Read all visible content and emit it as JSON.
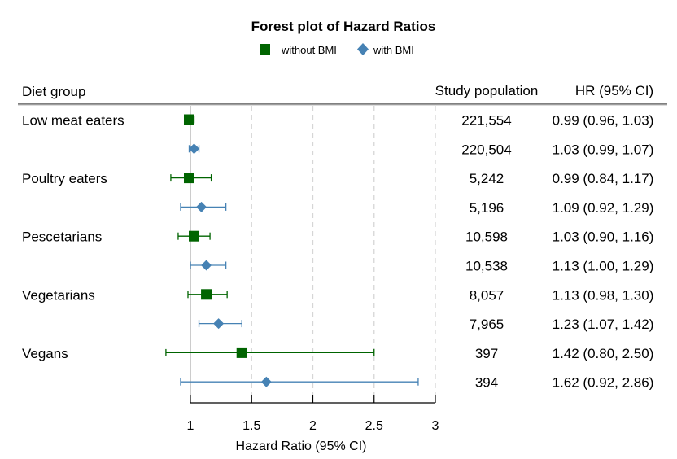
{
  "chart_data": {
    "type": "forest",
    "title": "Forest plot of Hazard Ratios",
    "xlabel": "Hazard Ratio (95% CI)",
    "xlim": [
      1,
      3
    ],
    "xticks": [
      1,
      1.5,
      2,
      2.5,
      3
    ],
    "xtick_labels": [
      "1",
      "1.5",
      "2",
      "2.5",
      "3"
    ],
    "reference_line": 1,
    "vertical_grid_dashed": [
      1.5,
      2,
      2.5,
      3
    ],
    "legend_position": "top-center",
    "series": [
      {
        "name": "without BMI",
        "marker": "square",
        "color": "#006400"
      },
      {
        "name": "with BMI",
        "marker": "diamond",
        "color": "#4682B4"
      }
    ],
    "headers": {
      "group": "Diet group",
      "population": "Study population",
      "hr": "HR (95% CI)"
    },
    "rows": [
      {
        "group": "Low meat eaters",
        "series": "without BMI",
        "population": "221,554",
        "hr_text": "0.99 (0.96, 1.03)",
        "hr": 0.99,
        "lo": 0.96,
        "hi": 1.03
      },
      {
        "group": "",
        "series": "with BMI",
        "population": "220,504",
        "hr_text": "1.03 (0.99, 1.07)",
        "hr": 1.03,
        "lo": 0.99,
        "hi": 1.07
      },
      {
        "group": "Poultry eaters",
        "series": "without BMI",
        "population": "5,242",
        "hr_text": "0.99 (0.84, 1.17)",
        "hr": 0.99,
        "lo": 0.84,
        "hi": 1.17
      },
      {
        "group": "",
        "series": "with BMI",
        "population": "5,196",
        "hr_text": "1.09 (0.92, 1.29)",
        "hr": 1.09,
        "lo": 0.92,
        "hi": 1.29
      },
      {
        "group": "Pescetarians",
        "series": "without BMI",
        "population": "10,598",
        "hr_text": "1.03 (0.90, 1.16)",
        "hr": 1.03,
        "lo": 0.9,
        "hi": 1.16
      },
      {
        "group": "",
        "series": "with BMI",
        "population": "10,538",
        "hr_text": "1.13 (1.00, 1.29)",
        "hr": 1.13,
        "lo": 1.0,
        "hi": 1.29
      },
      {
        "group": "Vegetarians",
        "series": "without BMI",
        "population": "8,057",
        "hr_text": "1.13 (0.98, 1.30)",
        "hr": 1.13,
        "lo": 0.98,
        "hi": 1.3
      },
      {
        "group": "",
        "series": "with BMI",
        "population": "7,965",
        "hr_text": "1.23 (1.07, 1.42)",
        "hr": 1.23,
        "lo": 1.07,
        "hi": 1.42
      },
      {
        "group": "Vegans",
        "series": "without BMI",
        "population": "397",
        "hr_text": "1.42 (0.80, 2.50)",
        "hr": 1.42,
        "lo": 0.8,
        "hi": 2.5
      },
      {
        "group": "",
        "series": "with BMI",
        "population": "394",
        "hr_text": "1.62 (0.92, 2.86)",
        "hr": 1.62,
        "lo": 0.92,
        "hi": 2.86
      }
    ]
  }
}
